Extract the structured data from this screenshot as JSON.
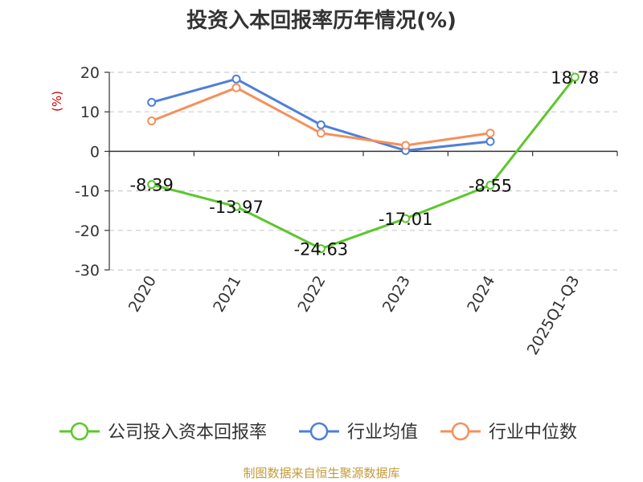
{
  "chart_data": {
    "type": "line",
    "title": "投资入本回报率历年情况(%)",
    "ylabel": "(%)",
    "categories": [
      "2020",
      "2021",
      "2022",
      "2023",
      "2024",
      "2025Q1-Q3"
    ],
    "yticks": [
      "20",
      "10",
      "0",
      "-10",
      "-20",
      "-30"
    ],
    "ylim": [
      -30,
      20
    ],
    "grid": true,
    "legend_position": "bottom",
    "series": [
      {
        "name": "公司投入资本回报率",
        "color": "#5cc72c",
        "values": [
          -8.39,
          -13.97,
          -24.63,
          -17.01,
          -8.55,
          18.78
        ],
        "labels": [
          "-8.39",
          "-13.97",
          "-24.63",
          "-17.01",
          "-8.55",
          "18.78"
        ]
      },
      {
        "name": "行业均值",
        "color": "#4e7fd9",
        "values": [
          12.4,
          18.3,
          6.7,
          0.2,
          2.5,
          null
        ]
      },
      {
        "name": "行业中位数",
        "color": "#f5905a",
        "values": [
          7.7,
          16.1,
          4.6,
          1.5,
          4.6,
          null
        ]
      }
    ]
  },
  "source": "制图数据来自恒生聚源数据库"
}
